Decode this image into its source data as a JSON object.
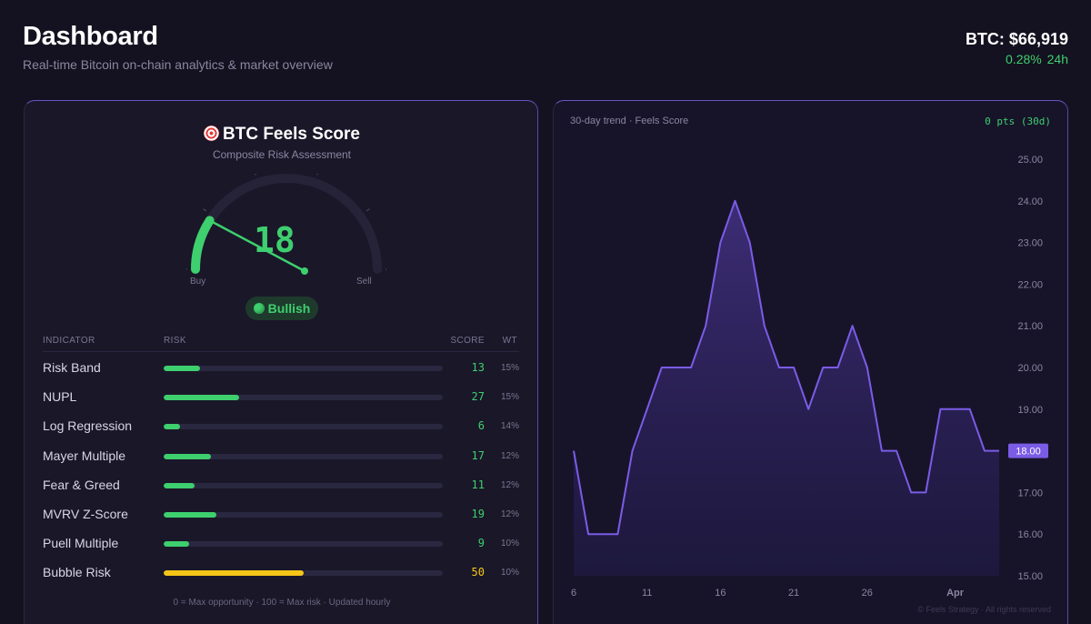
{
  "header": {
    "title": "Dashboard",
    "subtitle": "Real-time Bitcoin on-chain analytics & market overview",
    "btc_price": "BTC: $66,919",
    "btc_change": "0.28%",
    "btc_change_period": "24h"
  },
  "score": {
    "icon": "target-icon",
    "title": "BTC Feels Score",
    "subtitle": "Composite Risk Assessment",
    "value": 18,
    "value_label": "18",
    "buy_label": "Buy",
    "sell_label": "Sell",
    "status": "Bullish"
  },
  "table": {
    "headers": {
      "indicator": "INDICATOR",
      "risk": "RISK",
      "score": "SCORE",
      "wt": "WT"
    },
    "rows": [
      {
        "name": "Risk Band",
        "score": 13,
        "wt": "15%",
        "color": "#3ecf6e"
      },
      {
        "name": "NUPL",
        "score": 27,
        "wt": "15%",
        "color": "#3ecf6e"
      },
      {
        "name": "Log Regression",
        "score": 6,
        "wt": "14%",
        "color": "#3ecf6e"
      },
      {
        "name": "Mayer Multiple",
        "score": 17,
        "wt": "12%",
        "color": "#3ecf6e"
      },
      {
        "name": "Fear & Greed",
        "score": 11,
        "wt": "12%",
        "color": "#3ecf6e"
      },
      {
        "name": "MVRV Z-Score",
        "score": 19,
        "wt": "12%",
        "color": "#3ecf6e"
      },
      {
        "name": "Puell Multiple",
        "score": 9,
        "wt": "10%",
        "color": "#3ecf6e"
      },
      {
        "name": "Bubble Risk",
        "score": 50,
        "wt": "10%",
        "color": "#f5c518"
      }
    ],
    "footnote": "0 = Max opportunity · 100 = Max risk · Updated hourly"
  },
  "trend": {
    "label": "30-day trend · Feels Score",
    "change": "0 pts (30d)",
    "copyright": "© Feels Strategy · All rights reserved"
  },
  "chart_data": {
    "type": "area",
    "title": "30-day trend · Feels Score",
    "x_tick_labels": [
      "6",
      "11",
      "16",
      "21",
      "26",
      "Apr"
    ],
    "x_tick_index": [
      0,
      5,
      10,
      15,
      20,
      26
    ],
    "values": [
      18,
      16,
      16,
      16,
      18,
      19,
      20,
      20,
      20,
      21,
      23,
      24,
      23,
      21,
      20,
      20,
      19,
      20,
      20,
      21,
      20,
      18,
      18,
      17,
      17,
      19,
      19,
      19,
      18,
      18
    ],
    "y_ticks": [
      "25.00",
      "24.00",
      "23.00",
      "22.00",
      "21.00",
      "20.00",
      "19.00",
      "18.00",
      "17.00",
      "16.00",
      "15.00"
    ],
    "ylim": [
      15,
      25
    ],
    "current_value_label": "18.00",
    "line_color": "#7b5ce6"
  },
  "colors": {
    "accent": "#7b5ce6",
    "positive": "#3ecf6e",
    "warning": "#f5c518"
  }
}
